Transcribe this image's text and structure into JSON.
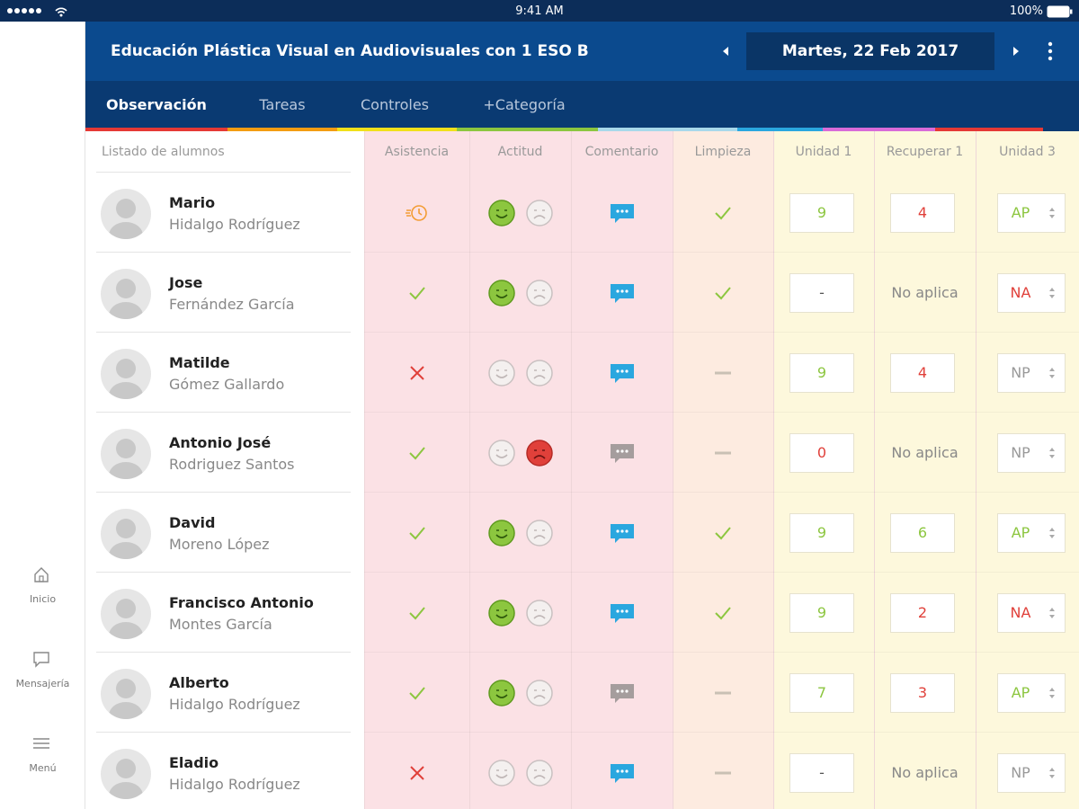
{
  "status_bar": {
    "time": "9:41 AM",
    "battery": "100%"
  },
  "header": {
    "title": "Educación Plástica Visual en Audiovisuales con 1 ESO B",
    "date": "Martes, 22 Feb 2017"
  },
  "tabs": [
    "Observación",
    "Tareas",
    "Controles",
    "+Categoría"
  ],
  "sidebar": [
    "Inicio",
    "Mensajería",
    "Menú"
  ],
  "table": {
    "columns": [
      "Listado de alumnos",
      "Asistencia",
      "Actitud",
      "Comentario",
      "Limpieza",
      "Unidad 1",
      "Recuperar 1",
      "Unidad 3"
    ],
    "rows": [
      {
        "first": "Mario",
        "last": "Hidalgo Rodríguez",
        "asistencia": "late",
        "actitud": "good",
        "comentario": "filled",
        "limpieza": "check",
        "unidad1": 9,
        "recuperar1": 4,
        "unidad3": "AP"
      },
      {
        "first": "Jose",
        "last": "Fernández García",
        "asistencia": "check",
        "actitud": "good",
        "comentario": "filled",
        "limpieza": "check",
        "unidad1": "-",
        "recuperar1": "No aplica",
        "unidad3": "NA"
      },
      {
        "first": "Matilde",
        "last": "Gómez Gallardo",
        "asistencia": "absent",
        "actitud": "none",
        "comentario": "filled",
        "limpieza": "dash",
        "unidad1": 9,
        "recuperar1": 4,
        "unidad3": "NP"
      },
      {
        "first": "Antonio José",
        "last": "Rodriguez Santos",
        "asistencia": "check",
        "actitud": "bad",
        "comentario": "empty",
        "limpieza": "dash",
        "unidad1": 0,
        "recuperar1": "No aplica",
        "unidad3": "NP"
      },
      {
        "first": "David",
        "last": "Moreno López",
        "asistencia": "check",
        "actitud": "good",
        "comentario": "filled",
        "limpieza": "check",
        "unidad1": 9,
        "recuperar1": 6,
        "unidad3": "AP"
      },
      {
        "first": "Francisco Antonio",
        "last": "Montes García",
        "asistencia": "check",
        "actitud": "good",
        "comentario": "filled",
        "limpieza": "check",
        "unidad1": 9,
        "recuperar1": 2,
        "unidad3": "NA"
      },
      {
        "first": "Alberto",
        "last": "Hidalgo Rodríguez",
        "asistencia": "check",
        "actitud": "good",
        "comentario": "empty",
        "limpieza": "dash",
        "unidad1": 7,
        "recuperar1": 3,
        "unidad3": "AP"
      },
      {
        "first": "Eladio",
        "last": "Hidalgo Rodríguez",
        "asistencia": "absent",
        "actitud": "none",
        "comentario": "filled",
        "limpieza": "dash",
        "unidad1": "-",
        "recuperar1": "No aplica",
        "unidad3": "NP"
      }
    ]
  }
}
